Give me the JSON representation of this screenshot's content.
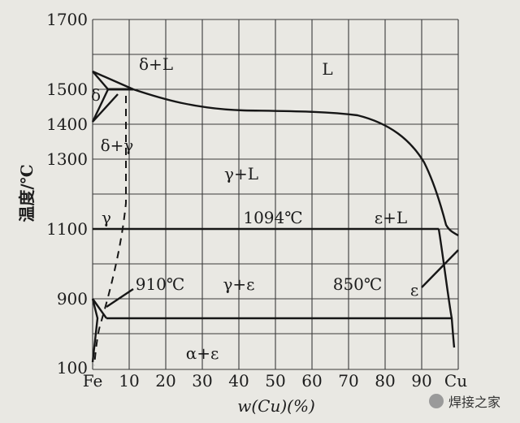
{
  "y_axis": {
    "label": "温度/℃",
    "ticks": [
      "1700",
      "1500",
      "1400",
      "1300",
      "1100",
      "900",
      "100"
    ]
  },
  "x_axis": {
    "label": "w(Cu)(%)",
    "ticks": [
      "Fe",
      "10",
      "20",
      "30",
      "40",
      "50",
      "60",
      "70",
      "80",
      "90",
      "Cu"
    ]
  },
  "regions": {
    "liquid": "L",
    "delta_liquid": "δ+L",
    "delta": "δ",
    "delta_gamma": "δ+γ",
    "gamma_liquid": "γ+L",
    "gamma": "γ",
    "epsilon_liquid": "ε+L",
    "gamma_epsilon": "γ+ε",
    "epsilon": "ε",
    "alpha_epsilon": "α+ε"
  },
  "annotations": {
    "peritectic_temp": "1094℃",
    "gamma_alpha_temp": "910℃",
    "eutectoid_temp": "850℃"
  },
  "watermark": "焊接之家"
}
